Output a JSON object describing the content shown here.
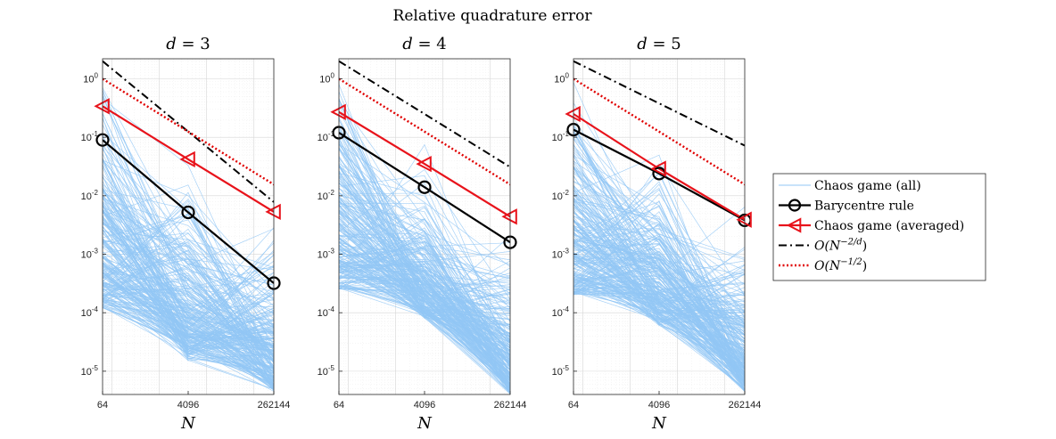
{
  "figure": {
    "title": "Relative quadrature error"
  },
  "chart_data": [
    {
      "type": "line",
      "title": "d = 3",
      "title_parts": {
        "var": "d",
        "eq": " = ",
        "val": "3"
      },
      "xlabel": "N",
      "xscale": "log",
      "yscale": "log",
      "x": [
        64,
        4096,
        262144
      ],
      "xticklabels": [
        "64",
        "4096",
        "262144"
      ],
      "ylim": [
        4e-06,
        2.2
      ],
      "grid": true,
      "series": [
        {
          "name": "Barycentre rule",
          "values": [
            0.09,
            0.0052,
            0.00032
          ],
          "color": "#000000",
          "marker": "circle"
        },
        {
          "name": "Chaos game (averaged)",
          "values": [
            0.34,
            0.042,
            0.0053
          ],
          "color": "#e8131b",
          "marker": "triangle-left"
        },
        {
          "name": "O(N^{-2/d})",
          "values": [
            2.0,
            0.125,
            0.0078
          ],
          "color": "#000000",
          "style": "dash-dot"
        },
        {
          "name": "O(N^{-1/2})",
          "values": [
            1.0,
            0.125,
            0.0156
          ],
          "color": "#e00000",
          "style": "dotted"
        }
      ],
      "chaos_band": {
        "name": "Chaos game (all)",
        "upper": [
          1.6,
          0.17,
          0.02
        ],
        "lower": [
          0.00012,
          1.5e-05,
          4.5e-06
        ],
        "color": "#92c7f5"
      }
    },
    {
      "type": "line",
      "title": "d = 4",
      "title_parts": {
        "var": "d",
        "eq": " = ",
        "val": "4"
      },
      "xlabel": "N",
      "xscale": "log",
      "yscale": "log",
      "x": [
        64,
        4096,
        262144
      ],
      "xticklabels": [
        "64",
        "4096",
        "262144"
      ],
      "ylim": [
        4e-06,
        2.2
      ],
      "grid": true,
      "series": [
        {
          "name": "Barycentre rule",
          "values": [
            0.12,
            0.014,
            0.0016
          ],
          "color": "#000000",
          "marker": "circle"
        },
        {
          "name": "Chaos game (averaged)",
          "values": [
            0.27,
            0.035,
            0.0044
          ],
          "color": "#e8131b",
          "marker": "triangle-left"
        },
        {
          "name": "O(N^{-2/d})",
          "values": [
            2.0,
            0.25,
            0.031
          ],
          "color": "#000000",
          "style": "dash-dot"
        },
        {
          "name": "O(N^{-1/2})",
          "values": [
            1.0,
            0.125,
            0.0156
          ],
          "color": "#e00000",
          "style": "dotted"
        }
      ],
      "chaos_band": {
        "name": "Chaos game (all)",
        "upper": [
          1.2,
          0.14,
          0.016
        ],
        "lower": [
          0.00025,
          8e-05,
          4e-06
        ],
        "color": "#92c7f5"
      }
    },
    {
      "type": "line",
      "title": "d = 5",
      "title_parts": {
        "var": "d",
        "eq": " = ",
        "val": "5"
      },
      "xlabel": "N",
      "xscale": "log",
      "yscale": "log",
      "x": [
        64,
        4096,
        262144
      ],
      "xticklabels": [
        "64",
        "4096",
        "262144"
      ],
      "ylim": [
        4e-06,
        2.2
      ],
      "grid": true,
      "series": [
        {
          "name": "Barycentre rule",
          "values": [
            0.135,
            0.024,
            0.0038
          ],
          "color": "#000000",
          "marker": "circle"
        },
        {
          "name": "Chaos game (averaged)",
          "values": [
            0.25,
            0.029,
            0.0039
          ],
          "color": "#e8131b",
          "marker": "triangle-left"
        },
        {
          "name": "O(N^{-2/d})",
          "values": [
            2.0,
            0.38,
            0.072
          ],
          "color": "#000000",
          "style": "dash-dot"
        },
        {
          "name": "O(N^{-1/2})",
          "values": [
            1.0,
            0.125,
            0.0156
          ],
          "color": "#e00000",
          "style": "dotted"
        }
      ],
      "chaos_band": {
        "name": "Chaos game (all)",
        "upper": [
          1.1,
          0.13,
          0.014
        ],
        "lower": [
          0.0002,
          6e-05,
          4.5e-06
        ],
        "color": "#92c7f5"
      }
    }
  ],
  "legend": {
    "placement": "right",
    "entries": [
      {
        "key": "chaos_all",
        "text": "Chaos game (all)"
      },
      {
        "key": "barycentre",
        "text": "Barycentre rule"
      },
      {
        "key": "chaos_avg",
        "text": "Chaos game (averaged)"
      },
      {
        "key": "rate_d",
        "text_base": "O(N",
        "text_exp": "−2/d",
        "text_end": ")"
      },
      {
        "key": "rate_half",
        "text_base": "O(N",
        "text_exp": "−1/2",
        "text_end": ")"
      }
    ]
  },
  "yticks": {
    "values": [
      1,
      0.1,
      0.01,
      0.001,
      0.0001,
      1e-05
    ],
    "mantissa": [
      "10",
      "10",
      "10",
      "10",
      "10",
      "10"
    ],
    "exponent": [
      "0",
      "-1",
      "-2",
      "-3",
      "-4",
      "-5"
    ]
  }
}
